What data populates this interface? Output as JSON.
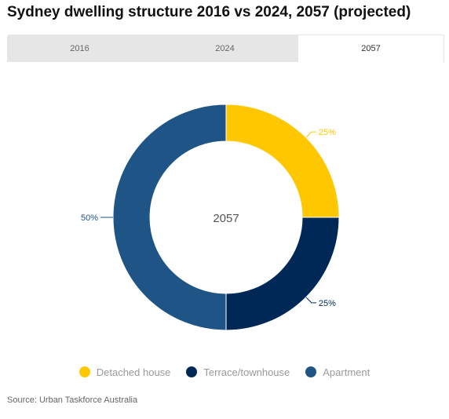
{
  "title": "Sydney dwelling structure 2016 vs 2024, 2057 (projected)",
  "tabs": [
    {
      "label": "2016",
      "active": false
    },
    {
      "label": "2024",
      "active": false
    },
    {
      "label": "2057",
      "active": true
    }
  ],
  "source": "Source: Urban Taskforce Australia",
  "chart_data": {
    "type": "pie",
    "variant": "donut",
    "center_label": "2057",
    "categories": [
      "Detached house",
      "Terrace/townhouse",
      "Apartment"
    ],
    "values": [
      25,
      25,
      50
    ],
    "data_labels": [
      "25%",
      "25%",
      "50%"
    ],
    "colors": [
      "#ffc700",
      "#002856",
      "#1f5486"
    ],
    "legend_position": "bottom-center"
  }
}
